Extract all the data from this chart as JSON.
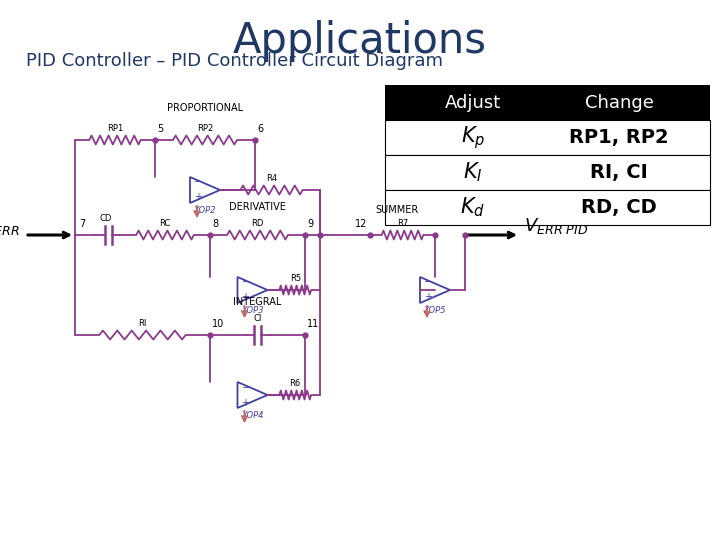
{
  "title": "Applications",
  "subtitle": "PID Controller – PID Controller Circuit Diagram",
  "title_color": "#1F3864",
  "subtitle_color": "#1F3864",
  "circuit_color": "#8B3A8B",
  "ground_color": "#C06060",
  "opamp_color": "#4040A0",
  "node_color": "#8B3A8B",
  "table_header_bg": "#000000",
  "table_header_fg": "#ffffff",
  "table_rows": [
    [
      "$\\mathbf{K_p}$",
      "RP1, RP2"
    ],
    [
      "$\\mathbf{K_I}$",
      "RI, CI"
    ],
    [
      "$\\mathbf{K_d}$",
      "RD, CD"
    ]
  ]
}
